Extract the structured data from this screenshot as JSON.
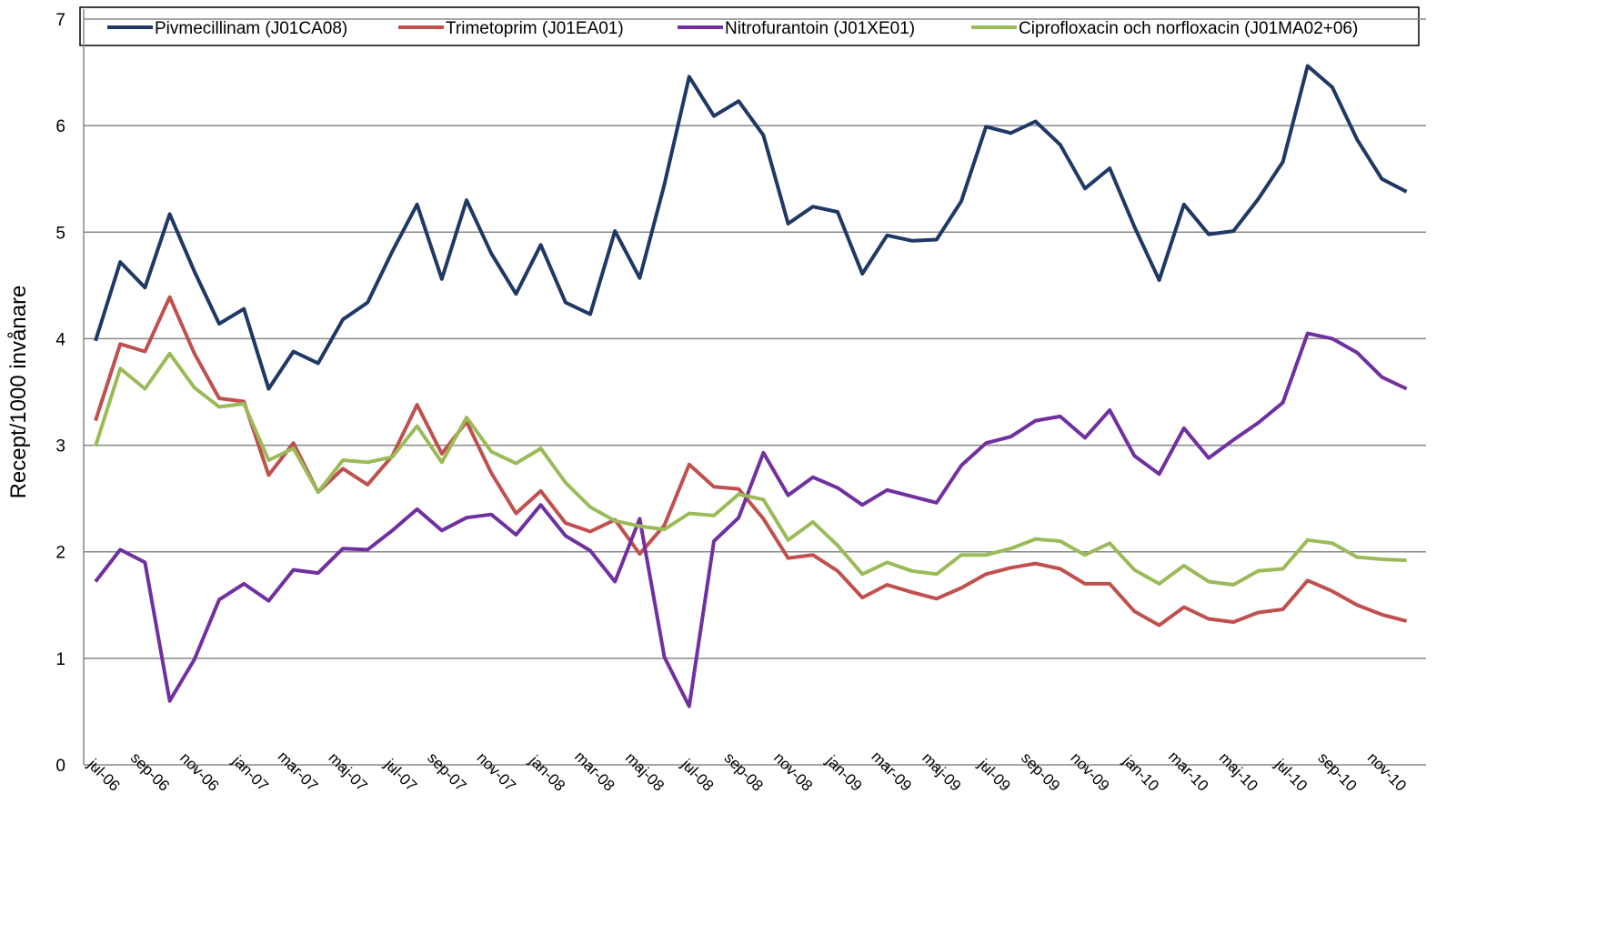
{
  "chart_data": {
    "type": "line",
    "ylabel": "Recept/1000 invånare",
    "categories": [
      "jul-06",
      null,
      "sep-06",
      null,
      "nov-06",
      null,
      "jan-07",
      null,
      "mar-07",
      null,
      "maj-07",
      null,
      "jul-07",
      null,
      "sep-07",
      null,
      "nov-07",
      null,
      "jan-08",
      null,
      "mar-08",
      null,
      "maj-08",
      null,
      "jul-08",
      null,
      "sep-08",
      null,
      "nov-08",
      null,
      "jan-09",
      null,
      "mar-09",
      null,
      "maj-09",
      null,
      "jul-09",
      null,
      "sep-09",
      null,
      "nov-09",
      null,
      "jan-10",
      null,
      "mar-10",
      null,
      "maj-10",
      null,
      "jul-10",
      null,
      "sep-10",
      null,
      "nov-10",
      null
    ],
    "ylim": [
      0,
      7
    ],
    "yticks": [
      0,
      1,
      2,
      3,
      4,
      5,
      6,
      7
    ],
    "grid": true,
    "legend": "top",
    "series": [
      {
        "name": "Pivmecillinam (J01CA08)",
        "color": "#1f3864",
        "values": [
          3.98,
          4.72,
          4.48,
          5.17,
          4.63,
          4.14,
          4.28,
          3.53,
          3.88,
          3.77,
          4.18,
          4.34,
          4.82,
          5.26,
          4.56,
          5.3,
          4.8,
          4.42,
          4.88,
          4.34,
          4.23,
          5.01,
          4.57,
          5.45,
          6.46,
          6.09,
          6.23,
          5.91,
          5.08,
          5.24,
          5.19,
          4.61,
          4.97,
          4.92,
          4.93,
          5.29,
          5.99,
          5.93,
          6.04,
          5.82,
          5.41,
          5.6,
          5.05,
          4.55,
          5.26,
          4.98,
          5.01,
          5.31,
          5.66,
          6.56,
          6.36,
          5.87,
          5.5,
          5.38
        ]
      },
      {
        "name": "Trimetoprim (J01EA01)",
        "color": "#c0504d",
        "values": [
          3.23,
          3.95,
          3.88,
          4.39,
          3.86,
          3.44,
          3.41,
          2.72,
          3.02,
          2.56,
          2.78,
          2.63,
          2.9,
          3.38,
          2.92,
          3.22,
          2.74,
          2.36,
          2.57,
          2.27,
          2.19,
          2.3,
          1.98,
          2.25,
          2.82,
          2.61,
          2.59,
          2.31,
          1.94,
          1.97,
          1.82,
          1.57,
          1.69,
          1.62,
          1.56,
          1.66,
          1.79,
          1.85,
          1.89,
          1.84,
          1.7,
          1.7,
          1.44,
          1.31,
          1.48,
          1.37,
          1.34,
          1.43,
          1.46,
          1.73,
          1.63,
          1.5,
          1.41,
          1.35
        ]
      },
      {
        "name": "Nitrofurantoin (J01XE01)",
        "color": "#7030a0",
        "values": [
          1.72,
          2.02,
          1.9,
          0.6,
          0.99,
          1.55,
          1.7,
          1.54,
          1.83,
          1.8,
          2.03,
          2.02,
          2.2,
          2.4,
          2.2,
          2.32,
          2.35,
          2.16,
          2.44,
          2.15,
          2.01,
          1.72,
          2.31,
          1.01,
          0.55,
          2.1,
          2.32,
          2.93,
          2.53,
          2.7,
          2.6,
          2.44,
          2.58,
          2.52,
          2.46,
          2.81,
          3.02,
          3.08,
          3.23,
          3.27,
          3.07,
          3.33,
          2.9,
          2.73,
          3.16,
          2.88,
          3.05,
          3.21,
          3.4,
          4.05,
          4.0,
          3.87,
          3.64,
          3.53
        ]
      },
      {
        "name": "Ciprofloxacin och norfloxacin (J01MA02+06)",
        "color": "#9bbb59",
        "values": [
          2.99,
          3.72,
          3.53,
          3.86,
          3.54,
          3.36,
          3.39,
          2.86,
          2.97,
          2.56,
          2.86,
          2.84,
          2.89,
          3.18,
          2.84,
          3.26,
          2.94,
          2.83,
          2.97,
          2.65,
          2.42,
          2.29,
          2.24,
          2.21,
          2.36,
          2.34,
          2.54,
          2.49,
          2.11,
          2.28,
          2.06,
          1.79,
          1.9,
          1.82,
          1.79,
          1.97,
          1.97,
          2.03,
          2.12,
          2.1,
          1.97,
          2.08,
          1.83,
          1.7,
          1.87,
          1.72,
          1.69,
          1.82,
          1.84,
          2.11,
          2.08,
          1.95,
          1.93,
          1.92
        ]
      }
    ]
  }
}
